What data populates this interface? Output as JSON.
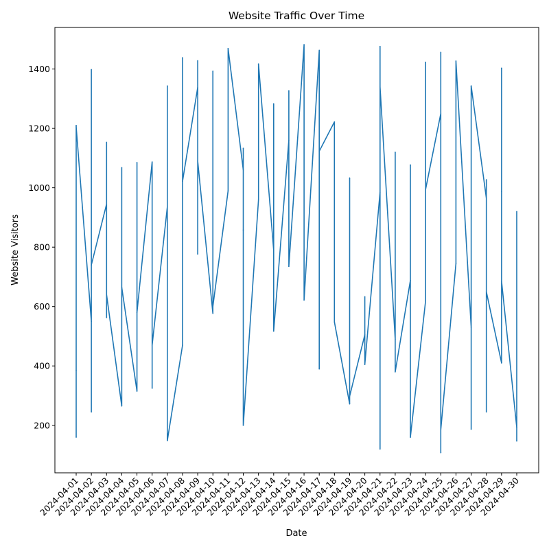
{
  "chart_data": {
    "type": "line",
    "title": "Website Traffic Over Time",
    "xlabel": "Date",
    "ylabel": "Website Visitors",
    "ylim": [
      40,
      1540
    ],
    "y_ticks": [
      200,
      400,
      600,
      800,
      1000,
      1200,
      1400
    ],
    "grid": false,
    "line_color": "#1f77b4",
    "categories": [
      "2024-04-01",
      "2024-04-02",
      "2024-04-03",
      "2024-04-04",
      "2024-04-05",
      "2024-04-06",
      "2024-04-07",
      "2024-04-08",
      "2024-04-09",
      "2024-04-10",
      "2024-04-11",
      "2024-04-12",
      "2024-04-13",
      "2024-04-14",
      "2024-04-15",
      "2024-04-16",
      "2024-04-17",
      "2024-04-18",
      "2024-04-19",
      "2024-04-20",
      "2024-04-21",
      "2024-04-22",
      "2024-04-23",
      "2024-04-24",
      "2024-04-25",
      "2024-04-26",
      "2024-04-27",
      "2024-04-28",
      "2024-04-29",
      "2024-04-30"
    ],
    "series": [
      {
        "x": [
          "2024-04-01",
          "2024-04-01",
          "2024-04-01",
          "2024-04-01",
          "2024-04-02",
          "2024-04-02",
          "2024-04-02",
          "2024-04-02",
          "2024-04-03",
          "2024-04-03",
          "2024-04-03",
          "2024-04-03",
          "2024-04-04",
          "2024-04-04",
          "2024-04-04",
          "2024-04-05",
          "2024-04-05",
          "2024-04-05",
          "2024-04-06",
          "2024-04-06",
          "2024-04-06",
          "2024-04-07",
          "2024-04-07",
          "2024-04-07",
          "2024-04-08",
          "2024-04-08",
          "2024-04-08",
          "2024-04-09",
          "2024-04-09",
          "2024-04-09",
          "2024-04-09",
          "2024-04-10",
          "2024-04-10",
          "2024-04-10",
          "2024-04-11",
          "2024-04-11",
          "2024-04-12",
          "2024-04-12",
          "2024-04-12",
          "2024-04-12",
          "2024-04-13",
          "2024-04-13",
          "2024-04-14",
          "2024-04-14",
          "2024-04-14",
          "2024-04-15",
          "2024-04-15",
          "2024-04-15",
          "2024-04-16",
          "2024-04-16",
          "2024-04-17",
          "2024-04-17",
          "2024-04-17",
          "2024-04-18",
          "2024-04-18",
          "2024-04-19",
          "2024-04-19",
          "2024-04-19",
          "2024-04-20",
          "2024-04-20",
          "2024-04-20",
          "2024-04-21",
          "2024-04-21",
          "2024-04-21",
          "2024-04-21",
          "2024-04-22",
          "2024-04-22",
          "2024-04-22",
          "2024-04-23",
          "2024-04-23",
          "2024-04-23",
          "2024-04-24",
          "2024-04-24",
          "2024-04-24",
          "2024-04-25",
          "2024-04-25",
          "2024-04-25",
          "2024-04-25",
          "2024-04-26",
          "2024-04-26",
          "2024-04-27",
          "2024-04-27",
          "2024-04-27",
          "2024-04-27",
          "2024-04-28",
          "2024-04-28",
          "2024-04-28",
          "2024-04-28",
          "2024-04-29",
          "2024-04-29",
          "2024-04-29",
          "2024-04-29",
          "2024-04-30",
          "2024-04-30",
          "2024-04-30"
        ],
        "y": [
          160,
          1210,
          385,
          1205,
          550,
          1398,
          245,
          740,
          945,
          1153,
          563,
          640,
          265,
          1068,
          665,
          315,
          1085,
          580,
          1087,
          325,
          470,
          935,
          1343,
          148,
          470,
          1438,
          1022,
          1338,
          1428,
          777,
          1090,
          577,
          1393,
          600,
          990,
          1469,
          1060,
          1133,
          858,
          200,
          960,
          1417,
          790,
          1283,
          517,
          1160,
          1327,
          735,
          1482,
          622,
          1463,
          390,
          1123,
          1222,
          548,
          272,
          1033,
          298,
          505,
          633,
          405,
          985,
          1476,
          120,
          1340,
          490,
          1120,
          380,
          688,
          1077,
          160,
          620,
          1423,
          995,
          1250,
          1456,
          108,
          185,
          745,
          1427,
          530,
          1343,
          187,
          1343,
          965,
          1027,
          245,
          650,
          410,
          1403,
          988,
          685,
          193,
          920,
          147
        ]
      }
    ]
  }
}
